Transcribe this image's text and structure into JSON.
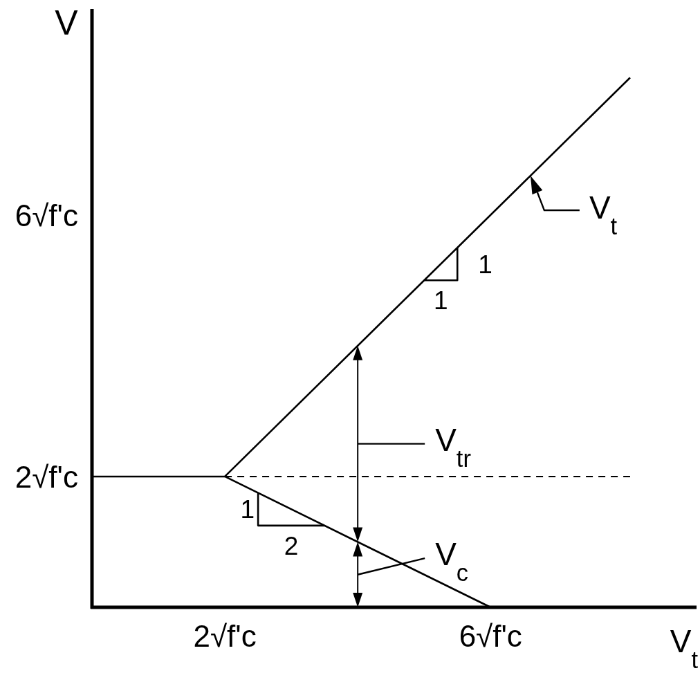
{
  "chart_data": {
    "type": "line",
    "xlabel": "V$_{t}$",
    "ylabel": "V",
    "xlim": [
      0,
      9.1
    ],
    "ylim": [
      0,
      9.15
    ],
    "xticks": [
      {
        "value": 2,
        "label": "2√f'c"
      },
      {
        "value": 6,
        "label": "6√f'c"
      }
    ],
    "yticks": [
      {
        "value": 2,
        "label": "2√f'c"
      },
      {
        "value": 6,
        "label": "6√f'c"
      }
    ],
    "series": [
      {
        "color": "#000000",
        "x": [
          0,
          2,
          8.1
        ],
        "values": [
          2,
          2,
          8.1
        ]
      },
      {
        "color": "#000000",
        "x": [
          2,
          6
        ],
        "values": [
          2,
          0
        ]
      },
      {
        "color": "#000000",
        "x": [
          2,
          8.1
        ],
        "values": [
          2,
          2
        ],
        "line_style": "dashed"
      },
      {
        "color": "#000000",
        "x": [
          5.0,
          5.5,
          5.5
        ],
        "values": [
          5.0,
          5.0,
          5.5
        ]
      },
      {
        "color": "#000000",
        "x": [
          2.5,
          2.5,
          3.5
        ],
        "values": [
          1.75,
          1.25,
          1.25
        ]
      }
    ],
    "annotations": [
      {
        "text": "1",
        "x": 5.25,
        "y": 5.0
      },
      {
        "text": "1",
        "x": 5.5,
        "y": 5.25
      },
      {
        "text": "1",
        "x": 2.5,
        "y": 1.5
      },
      {
        "text": "2",
        "x": 3.0,
        "y": 1.25
      },
      {
        "text": "V$_{t}$",
        "x": 6.6,
        "y": 6.6
      },
      {
        "text": "V$_{tr}$",
        "x": 4,
        "y": 2
      },
      {
        "text": "V$_{c}$",
        "x": 4,
        "y": 1
      }
    ]
  }
}
